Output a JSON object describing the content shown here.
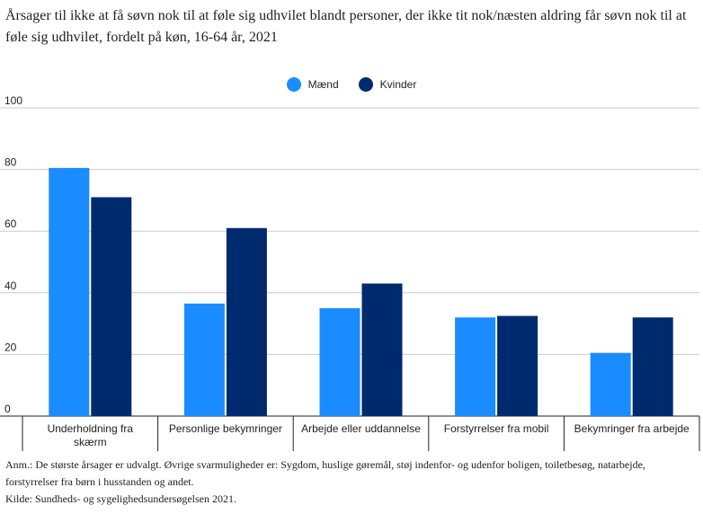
{
  "title": "Årsager til ikke at få søvn nok til at føle sig udhvilet blandt personer, der ikke tit nok/næsten aldring får søvn nok til at føle sig udhvilet, fordelt på køn, 16-64 år, 2021",
  "note": "Anm.: De største årsager er udvalgt. Øvrige svarmuligheder er: Sygdom, huslige gøremål, støj indenfor- og udenfor boligen, toiletbesøg, natarbejde, forstyrrelser fra børn i husstanden og andet.",
  "source": "Kilde: Sundheds- og sygelighedsundersøgelsen 2021.",
  "chart_data": {
    "type": "bar",
    "categories": [
      "Underholdning fra skærm",
      "Personlige bekymringer",
      "Arbejde eller uddannelse",
      "Forstyrrelser fra mobil",
      "Bekymringer fra arbejde"
    ],
    "category_lines": [
      [
        "Underholdning fra",
        "skærm"
      ],
      [
        "Personlige bekymringer"
      ],
      [
        "Arbejde eller uddannelse"
      ],
      [
        "Forstyrrelser fra mobil"
      ],
      [
        "Bekymringer fra arbejde"
      ]
    ],
    "series": [
      {
        "name": "Mænd",
        "color": "#1a8cff",
        "values": [
          80.5,
          36.5,
          35,
          32,
          20.5
        ]
      },
      {
        "name": "Kvinder",
        "color": "#002a6e",
        "values": [
          71,
          61,
          43,
          32.5,
          32
        ]
      }
    ],
    "ylim": [
      0,
      100
    ],
    "yticks": [
      0,
      20,
      40,
      60,
      80,
      100
    ],
    "grid": true,
    "legend_position": "top-center"
  }
}
